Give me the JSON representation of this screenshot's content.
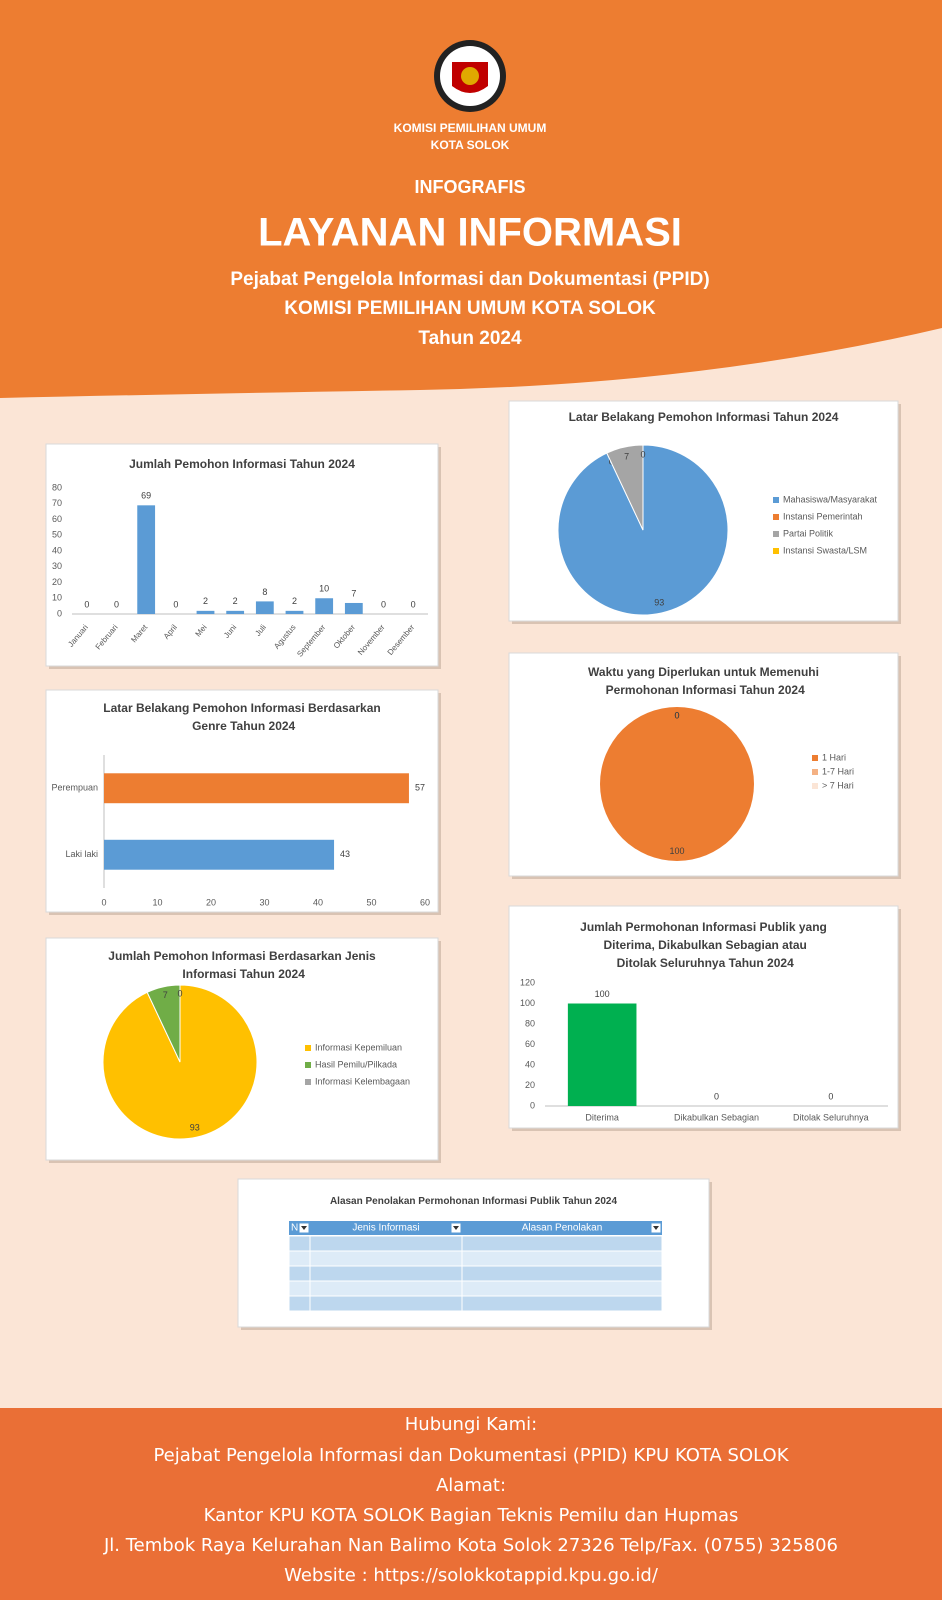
{
  "header": {
    "org": [
      "KOMISI PEMILIHAN UMUM",
      "KOTA SOLOK"
    ],
    "kicker": "INFOGRAFIS",
    "title": "LAYANAN INFORMASI",
    "subtitle": [
      "Pejabat Pengelola Informasi dan Dokumentasi (PPID)",
      "KOMISI PEMILIHAN UMUM KOTA SOLOK",
      "Tahun 2024"
    ]
  },
  "chart_data": [
    {
      "type": "bar",
      "title": "Jumlah Pemohon Informasi Tahun 2024",
      "categories": [
        "Januari",
        "Februari",
        "Maret",
        "April",
        "Mei",
        "Juni",
        "Juli",
        "Agustus",
        "September",
        "Oktober",
        "November",
        "Desember"
      ],
      "values": [
        0,
        0,
        69,
        0,
        2,
        2,
        8,
        2,
        10,
        7,
        0,
        0
      ],
      "color": "#5b9bd5",
      "ylim": [
        0,
        80
      ],
      "yticks": [
        0,
        10,
        20,
        30,
        40,
        50,
        60,
        70,
        80
      ]
    },
    {
      "type": "pie",
      "title": "Latar Belakang Pemohon Informasi Tahun 2024",
      "categories": [
        "Mahasiswa/Masyarakat",
        "Instansi Pemerintah",
        "Partai Politik",
        "Instansi Swasta/LSM"
      ],
      "values": [
        93,
        0,
        7,
        0
      ],
      "colors": [
        "#5b9bd5",
        "#ed7d31",
        "#a5a5a5",
        "#ffc000"
      ]
    },
    {
      "type": "hbar",
      "title": "Latar Belakang Pemohon Informasi Berdasarkan Genre Tahun 2024",
      "categories": [
        "Perempuan",
        "Laki laki"
      ],
      "values": [
        57,
        43
      ],
      "colors": [
        "#ed7d31",
        "#5b9bd5"
      ],
      "xlim": [
        0,
        60
      ],
      "xticks": [
        0,
        10,
        20,
        30,
        40,
        50,
        60
      ]
    },
    {
      "type": "pie",
      "title": "Waktu yang Diperlukan untuk Memenuhi Permohonan Informasi Tahun 2024",
      "categories": [
        "1 Hari",
        "1-7 Hari",
        "> 7 Hari"
      ],
      "values": [
        100,
        0,
        0
      ],
      "colors": [
        "#ed7d31",
        "#f4b183",
        "#fbe5d6"
      ]
    },
    {
      "type": "pie",
      "title": "Jumlah Pemohon Informasi Berdasarkan Jenis Informasi Tahun 2024",
      "categories": [
        "Informasi Kepemiluan",
        "Hasil Pemilu/Pilkada",
        "Informasi Kelembagaan"
      ],
      "values": [
        93,
        7,
        0
      ],
      "colors": [
        "#ffc000",
        "#70ad47",
        "#a5a5a5"
      ]
    },
    {
      "type": "bar",
      "title": "Jumlah Permohonan Informasi Publik yang Diterima, Dikabulkan Sebagian atau Ditolak Seluruhnya Tahun 2024",
      "categories": [
        "Diterima",
        "Dikabulkan Sebagian",
        "Ditolak Seluruhnya"
      ],
      "values": [
        100,
        0,
        0
      ],
      "color": "#00b050",
      "ylim": [
        0,
        120
      ],
      "yticks": [
        0,
        20,
        40,
        60,
        80,
        100,
        120
      ]
    },
    {
      "type": "table",
      "title": "Alasan Penolakan Permohonan Informasi Publik Tahun 2024",
      "columns": [
        "N",
        "Jenis Informasi",
        "Alasan Penolakan"
      ]
    }
  ],
  "footer": [
    "Hubungi Kami:",
    "Pejabat Pengelola Informasi dan Dokumentasi (PPID) KPU KOTA SOLOK",
    "Alamat:",
    "Kantor KPU KOTA SOLOK Bagian Teknis Pemilu dan Hupmas",
    "Jl. Tembok Raya Kelurahan Nan Balimo Kota Solok 27326 Telp/Fax. (0755) 325806",
    "Website : https://solokkotappid.kpu.go.id/"
  ]
}
